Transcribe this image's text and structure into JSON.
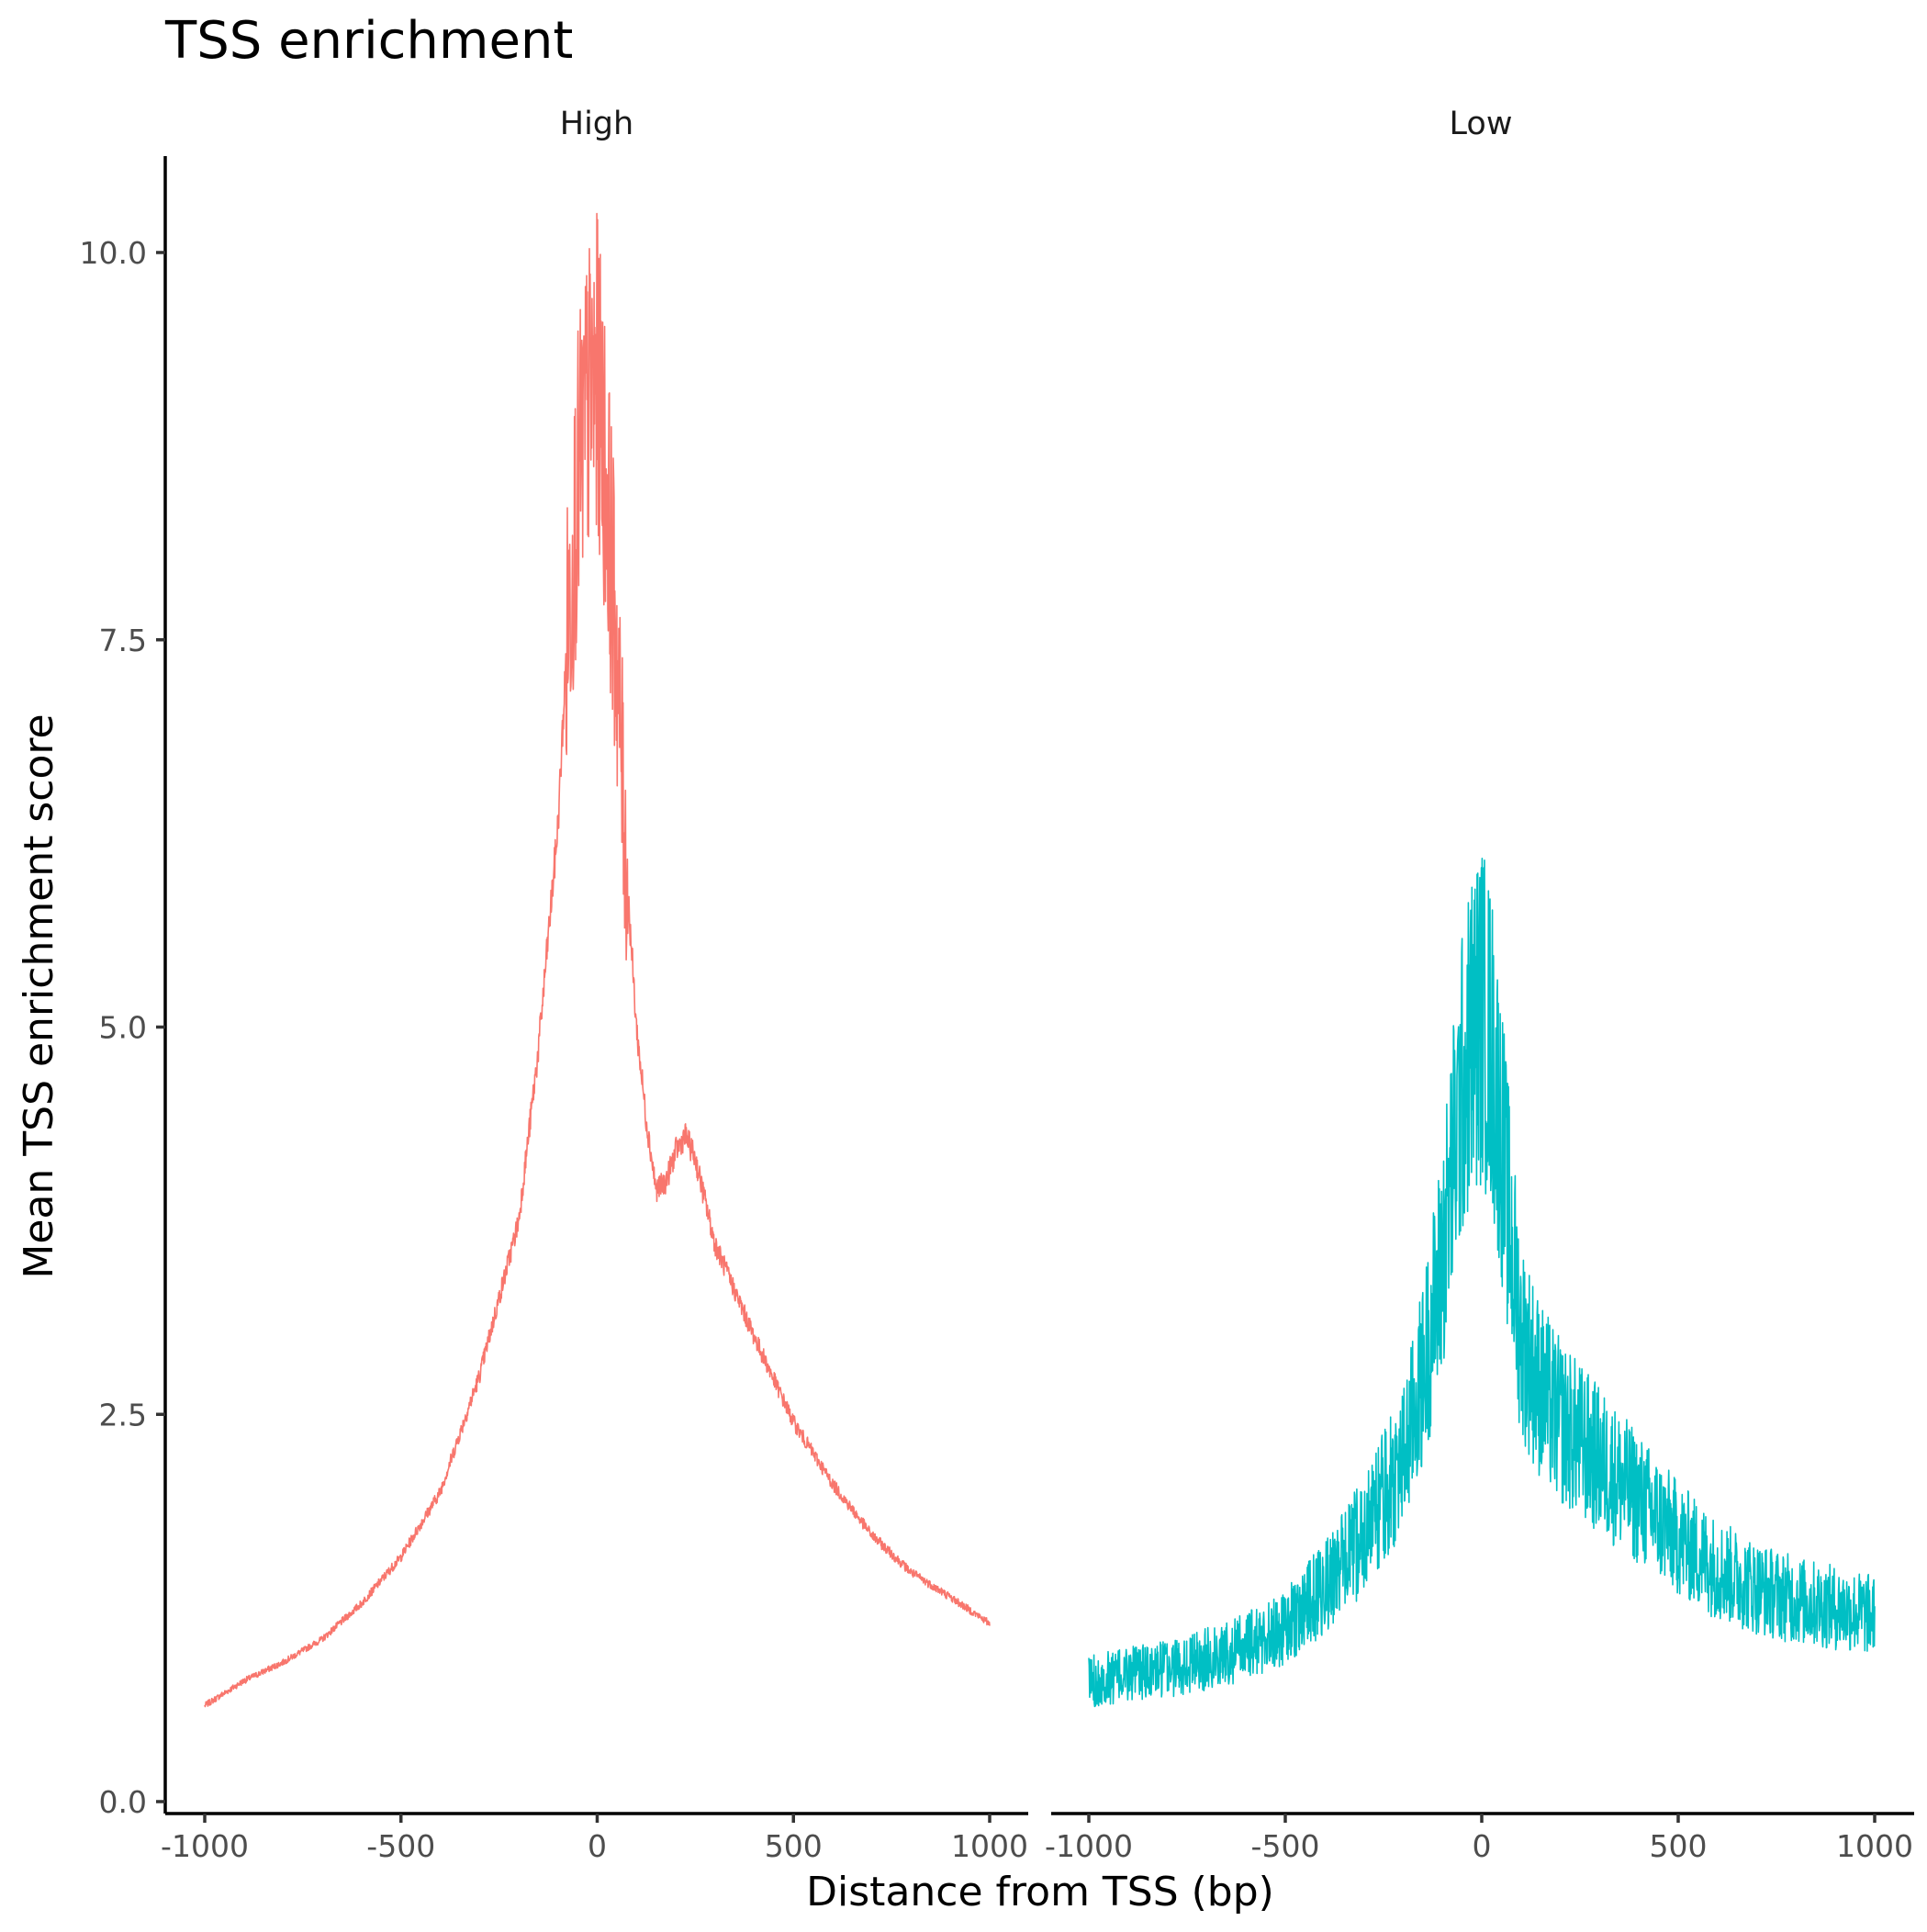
{
  "chart_data": {
    "type": "line",
    "title": "TSS enrichment",
    "xlabel": "Distance from TSS (bp)",
    "ylabel": "Mean TSS enrichment score",
    "xlim": [
      -1000,
      1000
    ],
    "ylim": [
      0,
      10.2
    ],
    "x_ticks": [
      -1000,
      -500,
      0,
      500,
      1000
    ],
    "x_tick_labels": [
      "-1000",
      "-500",
      "0",
      "500",
      "1000"
    ],
    "y_ticks": [
      0,
      2.5,
      5,
      7.5,
      10
    ],
    "y_tick_labels": [
      "0.0",
      "2.5",
      "5.0",
      "7.5",
      "10.0"
    ],
    "grid": false,
    "legend": "none",
    "panels": [
      {
        "name": "High",
        "color": "#F8766D",
        "x": [
          -1000,
          -900,
          -800,
          -700,
          -600,
          -500,
          -400,
          -300,
          -200,
          -150,
          -100,
          -75,
          -50,
          -25,
          0,
          25,
          50,
          75,
          100,
          125,
          150,
          175,
          200,
          225,
          250,
          300,
          400,
          500,
          600,
          700,
          800,
          900,
          1000
        ],
        "y": [
          0.62,
          0.78,
          0.9,
          1.05,
          1.28,
          1.58,
          2.0,
          2.75,
          3.75,
          4.85,
          6.3,
          7.6,
          8.5,
          9.0,
          9.2,
          8.5,
          7.4,
          6.0,
          5.0,
          4.4,
          3.95,
          4.0,
          4.2,
          4.3,
          4.15,
          3.6,
          3.0,
          2.45,
          2.05,
          1.72,
          1.48,
          1.32,
          1.15
        ]
      },
      {
        "name": "Low",
        "color": "#00BFC4",
        "x": [
          -1000,
          -900,
          -800,
          -700,
          -600,
          -500,
          -400,
          -300,
          -200,
          -150,
          -100,
          -75,
          -50,
          -25,
          0,
          25,
          50,
          75,
          100,
          150,
          200,
          300,
          400,
          500,
          600,
          700,
          800,
          900,
          1000
        ],
        "y": [
          0.78,
          0.82,
          0.86,
          0.92,
          1.0,
          1.12,
          1.38,
          1.72,
          2.2,
          2.75,
          3.5,
          4.1,
          4.6,
          4.95,
          5.1,
          4.85,
          4.3,
          3.6,
          3.0,
          2.65,
          2.45,
          2.2,
          1.95,
          1.7,
          1.5,
          1.38,
          1.3,
          1.25,
          1.2
        ]
      }
    ]
  }
}
